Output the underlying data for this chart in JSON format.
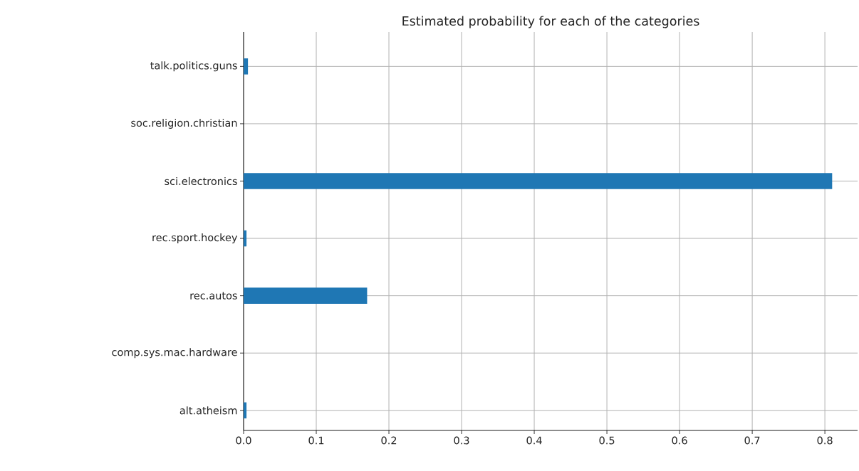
{
  "chart_data": {
    "type": "bar",
    "orientation": "horizontal",
    "title": "Estimated probability for each of the categories",
    "categories": [
      "talk.politics.guns",
      "soc.religion.christian",
      "sci.electronics",
      "rec.sport.hockey",
      "rec.autos",
      "comp.sys.mac.hardware",
      "alt.atheism"
    ],
    "values": [
      0.006,
      0,
      0.81,
      0.004,
      0.17,
      0,
      0.004
    ],
    "color": "#1f77b4",
    "xlim": [
      0,
      0.845
    ],
    "xticks": [
      {
        "value": 0,
        "label": "0.0"
      },
      0.1,
      0.2,
      0.3,
      0.4,
      0.5,
      0.6,
      0.7,
      0.8
    ],
    "grid": true
  }
}
